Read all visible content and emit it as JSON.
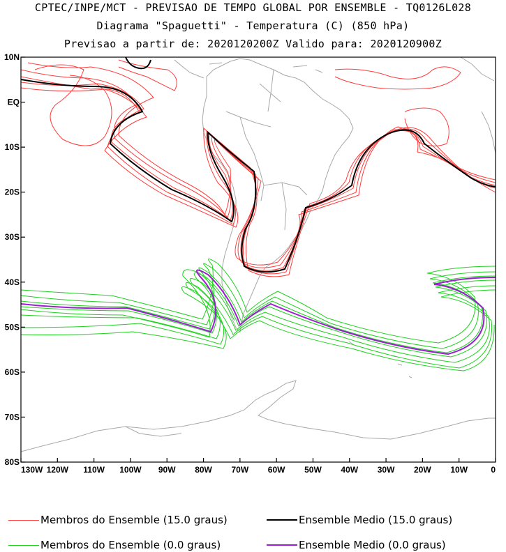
{
  "header": {
    "line1": "CPTEC/INPE/MCT - PREVISAO DE TEMPO GLOBAL POR ENSEMBLE - TQ0126L028",
    "line2": "Diagrama \"Spaguetti\" - Temperatura (C) (850 hPa)",
    "line3": "Previsao a partir de: 2020120200Z  Valido para: 2020120900Z"
  },
  "map": {
    "lat_labels": [
      "10N",
      "EQ",
      "10S",
      "20S",
      "30S",
      "40S",
      "50S",
      "60S",
      "70S",
      "80S"
    ],
    "lon_labels": [
      "130W",
      "120W",
      "110W",
      "100W",
      "90W",
      "80W",
      "70W",
      "60W",
      "50W",
      "40W",
      "30W",
      "20W",
      "10W",
      "0"
    ],
    "extent": {
      "lon": [
        -130,
        0
      ],
      "lat": [
        -80,
        10
      ]
    }
  },
  "legend": {
    "items": [
      {
        "label": "Membros do Ensemble (15.0 graus)",
        "color": "#ff3c3c"
      },
      {
        "label": "Ensemble Medio (15.0 graus)",
        "color": "#000000"
      },
      {
        "label": "Membros do Ensemble (0.0 graus)",
        "color": "#1ed21e"
      },
      {
        "label": "Ensemble Medio (0.0 graus)",
        "color": "#9b1fd0"
      }
    ]
  }
}
